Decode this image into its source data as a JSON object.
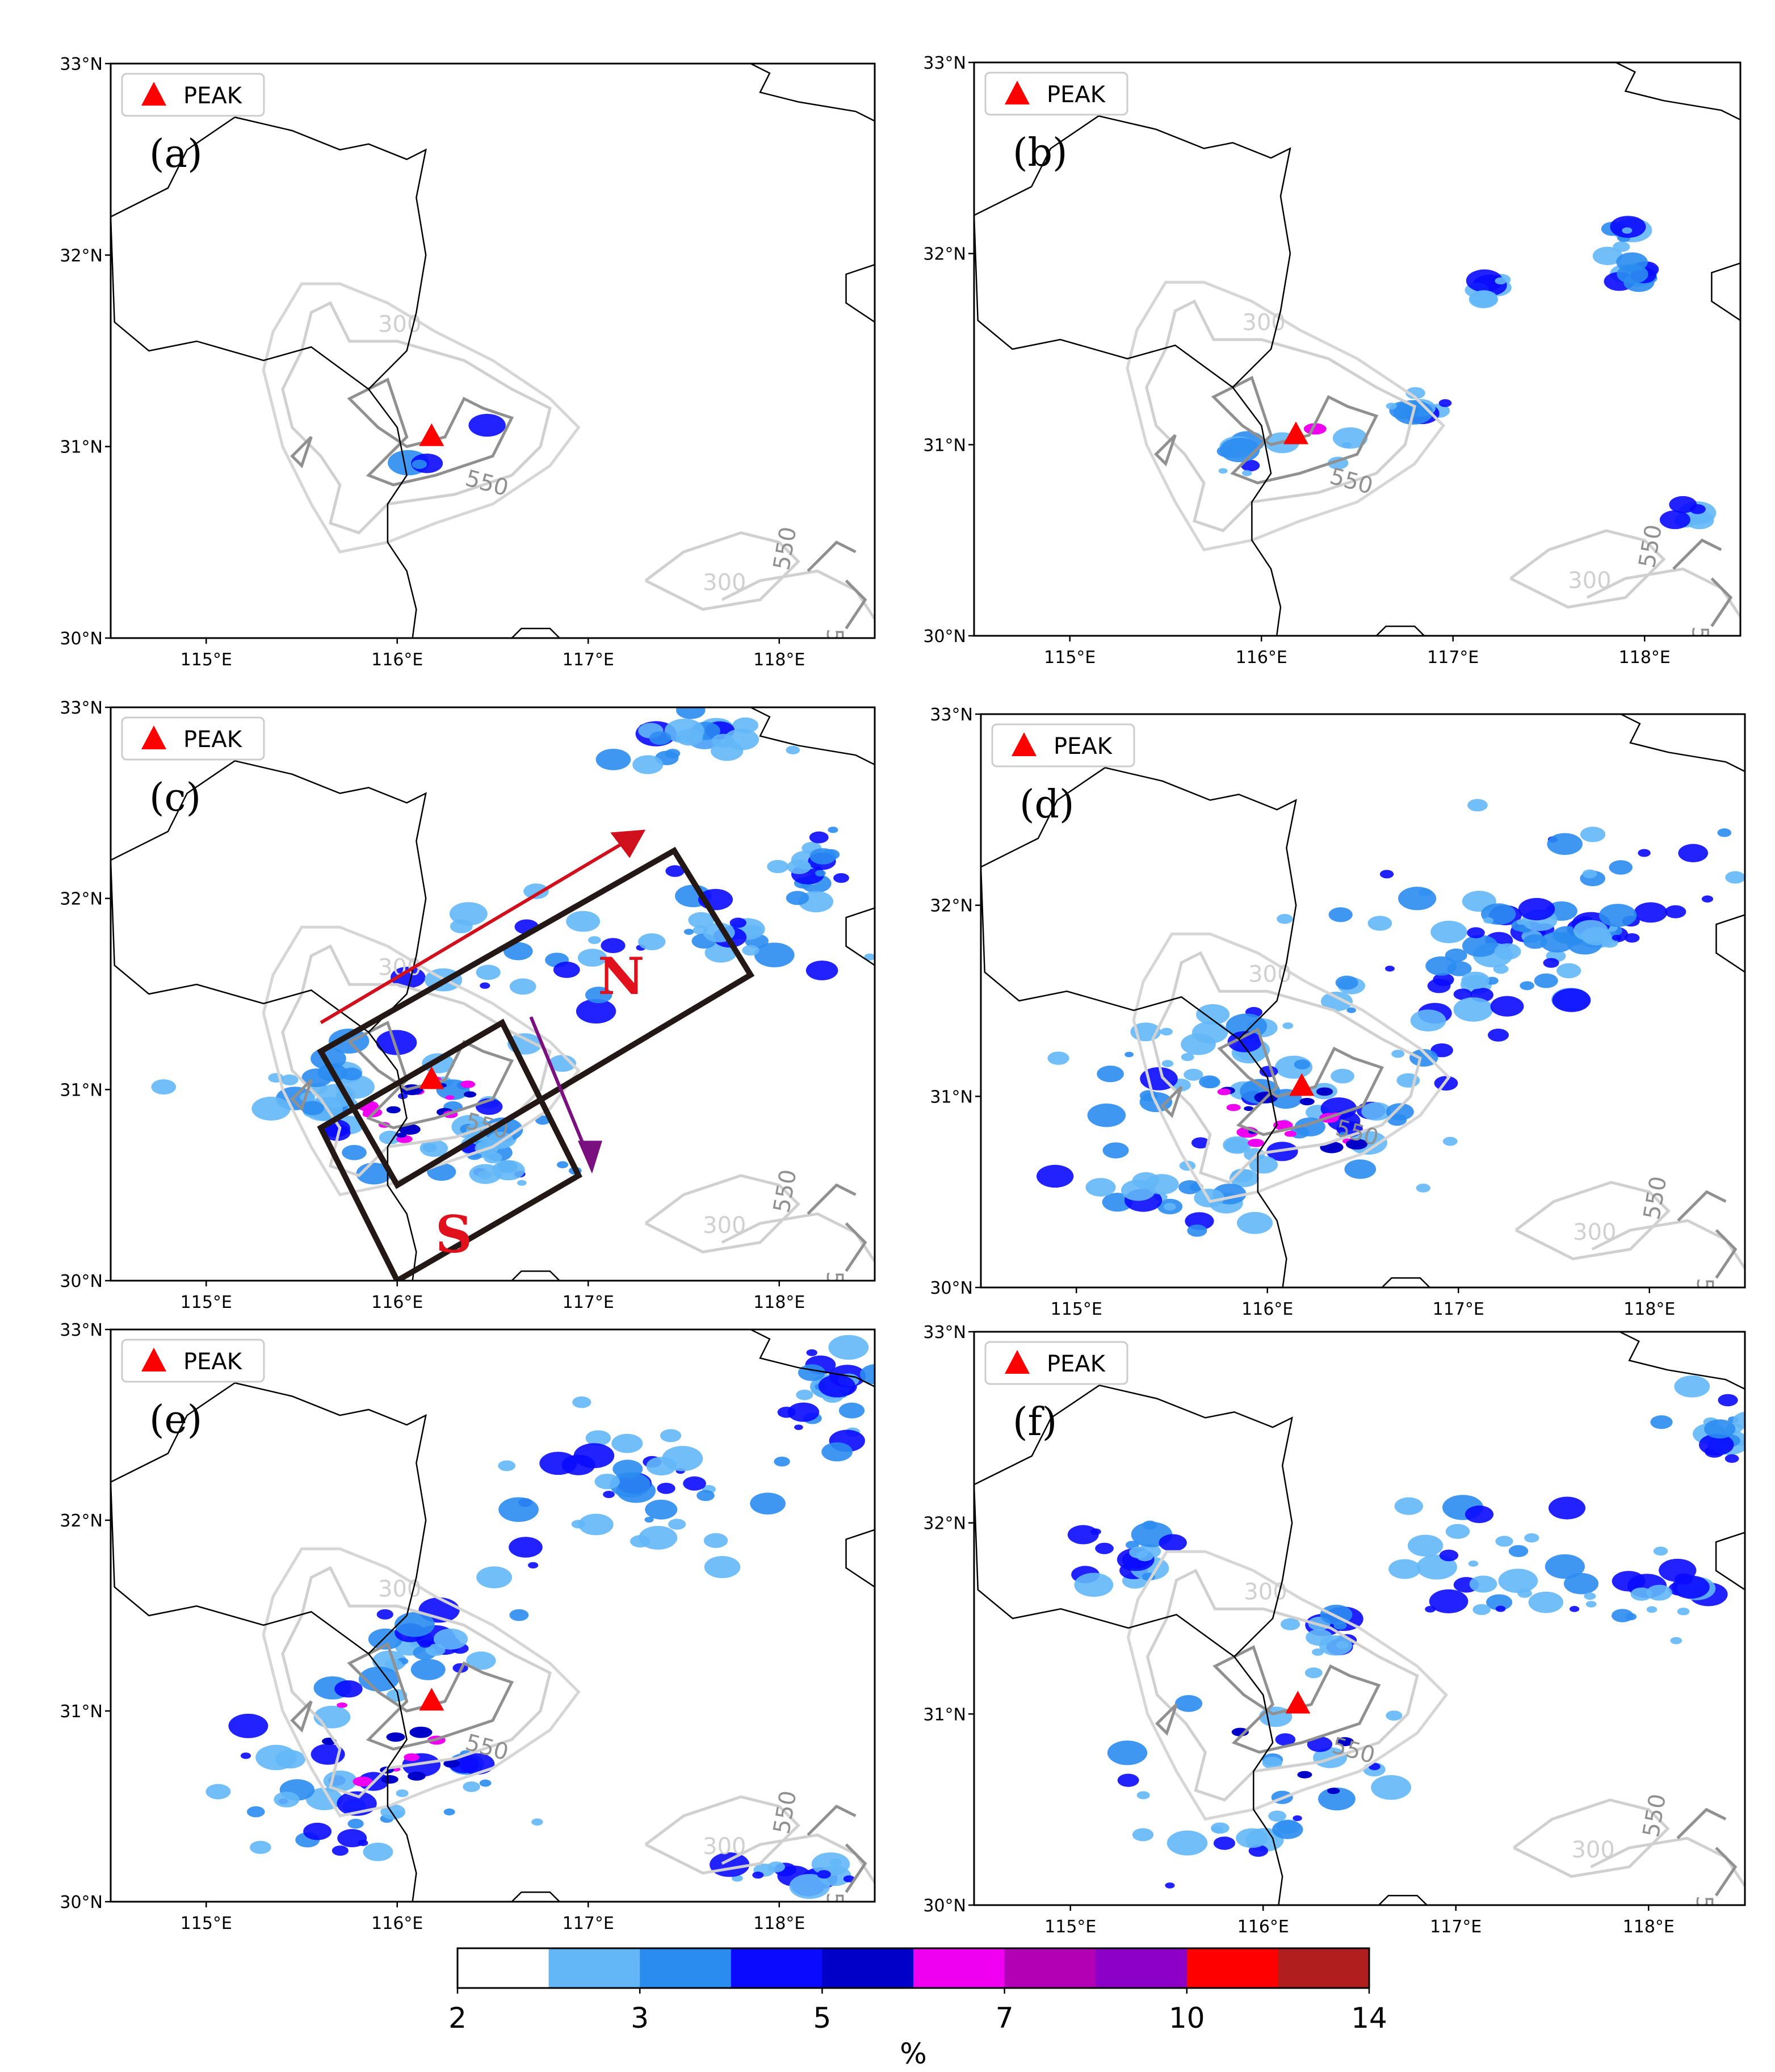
{
  "axes": {
    "lat_labels": [
      "33°N",
      "32°N",
      "31°N",
      "30°N"
    ],
    "lon_labels": [
      "115°E",
      "116°E",
      "117°E",
      "118°E"
    ],
    "lon_range": [
      114.5,
      118.5
    ],
    "lat_range": [
      30.0,
      33.0
    ]
  },
  "legend_label": "PEAK",
  "peak_marker": {
    "lon": 116.18,
    "lat": 31.05,
    "color": "#ff0000"
  },
  "contour_levels": {
    "outer": "300",
    "inner": "550"
  },
  "panels": [
    {
      "id": "a",
      "label": "(a)",
      "cells": 4,
      "core": 0.0
    },
    {
      "id": "b",
      "label": "(b)",
      "cells": 55,
      "core": 0.02
    },
    {
      "id": "c",
      "label": "(c)",
      "cells": 150,
      "core": 0.12
    },
    {
      "id": "d",
      "label": "(d)",
      "cells": 175,
      "core": 0.1
    },
    {
      "id": "e",
      "label": "(e)",
      "cells": 145,
      "core": 0.08
    },
    {
      "id": "f",
      "label": "(f)",
      "cells": 120,
      "core": 0.03
    }
  ],
  "annotation_c": {
    "north_label": "N",
    "south_label": "S",
    "arrow_ne_color": "#d0101c",
    "arrow_se_color": "#7a1080"
  },
  "colorbar": {
    "label": "%",
    "tick_labels": [
      "2",
      "3",
      "5",
      "7",
      "10",
      "14"
    ],
    "colors": [
      "#ffffff",
      "#63b7f7",
      "#2b8cf0",
      "#0a0aff",
      "#0000c8",
      "#f000f0",
      "#b400b4",
      "#8c00c8",
      "#ff0000",
      "#b01e1e"
    ]
  }
}
